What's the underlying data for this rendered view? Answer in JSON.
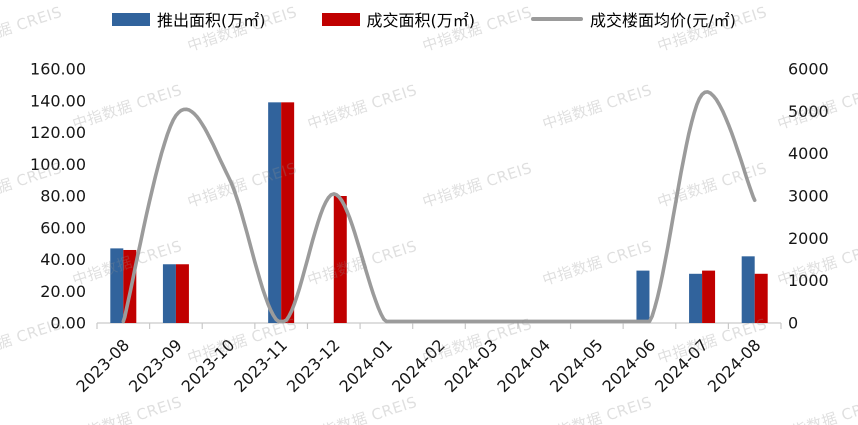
{
  "watermark": {
    "text": "中指数据 CREIS"
  },
  "chart_data": {
    "type": "bar+line combo",
    "title": "",
    "legend_position": "top",
    "grid": false,
    "categories": [
      "2023-08",
      "2023-09",
      "2023-10",
      "2023-11",
      "2023-12",
      "2024-01",
      "2024-02",
      "2024-03",
      "2024-04",
      "2024-05",
      "2024-06",
      "2024-07",
      "2024-08"
    ],
    "series": [
      {
        "key": "launched-area",
        "name": "推出面积(万㎡)",
        "type": "bar",
        "axis": "left",
        "color": "#31639C",
        "values": [
          47,
          37,
          0,
          139,
          0,
          0,
          0,
          0,
          0,
          0,
          33,
          31,
          42
        ]
      },
      {
        "key": "sold-area",
        "name": "成交面积(万㎡)",
        "type": "bar",
        "axis": "left",
        "color": "#C00000",
        "values": [
          46,
          37,
          0,
          139,
          80,
          0,
          0,
          0,
          0,
          0,
          0,
          33,
          31
        ]
      },
      {
        "key": "avg-floor-price",
        "name": "成交楼面均价(元/㎡)",
        "type": "line",
        "axis": "right",
        "color": "#9B9B9B",
        "values": [
          0,
          4900,
          3450,
          0,
          3050,
          0,
          0,
          0,
          0,
          0,
          0,
          5400,
          2900
        ]
      }
    ],
    "left_axis": {
      "min": 0,
      "max": 160,
      "step": 20,
      "tick_labels": [
        "0.00",
        "20.00",
        "40.00",
        "60.00",
        "80.00",
        "100.00",
        "120.00",
        "140.00",
        "160.00"
      ]
    },
    "right_axis": {
      "min": 0,
      "max": 6000,
      "step": 1000,
      "tick_labels": [
        "0",
        "1000",
        "2000",
        "3000",
        "4000",
        "5000",
        "6000"
      ]
    }
  }
}
